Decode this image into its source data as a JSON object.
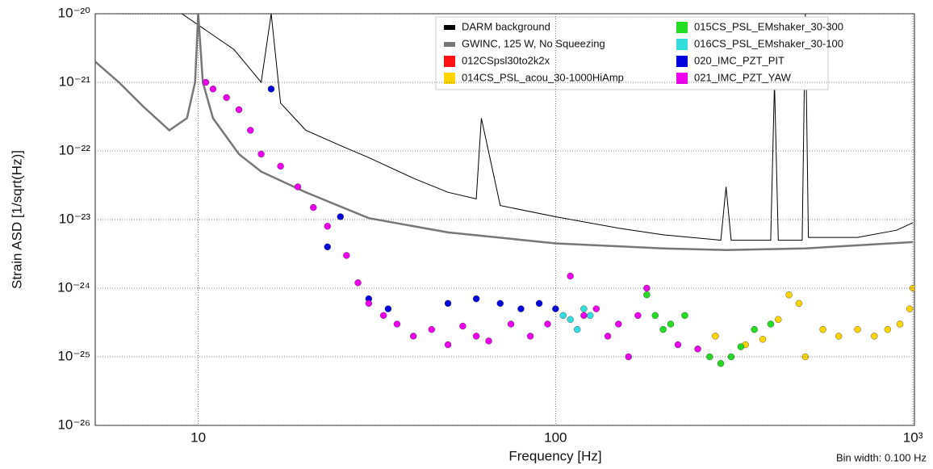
{
  "chart_data": {
    "type": "line",
    "x_label": "Frequency [Hz]",
    "y_label": "Strain ASD [1/sqrt(Hz)]",
    "annotation": "Bin width: 0.100 Hz",
    "xscale": "log",
    "yscale": "log",
    "grid": true,
    "legend": "top-right",
    "xlim": [
      5.15,
      1010
    ],
    "ylim": [
      1e-26,
      1e-20
    ],
    "xticks": [
      10,
      100,
      {
        "value": 1000,
        "label": "10³"
      }
    ],
    "yticks": [
      {
        "value": 1e-26,
        "label": "10⁻²⁶"
      },
      {
        "value": 1e-25,
        "label": "10⁻²⁵"
      },
      {
        "value": 1e-24,
        "label": "10⁻²⁴"
      },
      {
        "value": 1e-23,
        "label": "10⁻²³"
      },
      {
        "value": 1e-22,
        "label": "10⁻²²"
      },
      {
        "value": 1e-21,
        "label": "10⁻²¹"
      },
      {
        "value": 1e-20,
        "label": "10⁻²⁰"
      }
    ],
    "series": [
      {
        "name": "DARM background",
        "color": "#000000",
        "mode": "line",
        "x": [
          6,
          9,
          12.6,
          15,
          16,
          17,
          20,
          25,
          30,
          40,
          50,
          60,
          62,
          70,
          100,
          150,
          200,
          290,
          300,
          310,
          400,
          410,
          420,
          490,
          500,
          510,
          700,
          900,
          1000
        ],
        "values": [
          1e-20,
          1e-20,
          3e-21,
          1e-21,
          1e-20,
          5e-22,
          2e-22,
          1.2e-22,
          8e-23,
          4e-23,
          2.5e-23,
          2e-23,
          3e-22,
          1.6e-23,
          1.1e-23,
          7.5e-24,
          6e-24,
          5e-24,
          3e-23,
          5e-24,
          5e-24,
          1e-21,
          5e-24,
          5e-24,
          1e-20,
          5.5e-24,
          5.5e-24,
          7e-24,
          9e-24
        ]
      },
      {
        "name": "GWINC, 125 W, No Squeezing",
        "color": "#777777",
        "mode": "line",
        "x": [
          5.15,
          6,
          7,
          8.3,
          9.3,
          9.8,
          10,
          10.3,
          11,
          13,
          15,
          20,
          30,
          50,
          100,
          200,
          300,
          500,
          1000
        ],
        "values": [
          2e-21,
          1e-21,
          4.5e-22,
          2e-22,
          3e-22,
          1e-21,
          1e-20,
          1e-21,
          3e-22,
          9e-23,
          5e-23,
          2.5e-23,
          1.05e-23,
          6.5e-24,
          4.5e-24,
          3.8e-24,
          3.6e-24,
          3.8e-24,
          4.7e-24
        ]
      },
      {
        "name": "012CSpsl30to2k2x",
        "color": "#ff1111",
        "mode": "scatter",
        "x": [],
        "values": []
      },
      {
        "name": "014CS_PSL_acou_30-1000HiAmp",
        "color": "#ffd400",
        "mode": "scatter",
        "x": [
          280,
          340,
          380,
          420,
          450,
          480,
          500,
          560,
          620,
          700,
          780,
          850,
          920,
          980,
          1000
        ],
        "values": [
          2e-25,
          1.5e-25,
          1.8e-25,
          3.5e-25,
          8e-25,
          6e-25,
          1e-25,
          2.5e-25,
          2e-25,
          2.5e-25,
          2e-25,
          2.5e-25,
          3e-25,
          5e-25,
          1e-24
        ]
      },
      {
        "name": "015CS_PSL_EMshaker_30-300",
        "color": "#22dd22",
        "mode": "scatter",
        "x": [
          180,
          190,
          200,
          210,
          230,
          270,
          290,
          310,
          330,
          360,
          400
        ],
        "values": [
          8e-25,
          4e-25,
          2.5e-25,
          3e-25,
          4e-25,
          1e-25,
          8e-26,
          1e-25,
          1.4e-25,
          2.5e-25,
          3e-25
        ]
      },
      {
        "name": "016CS_PSL_EMshaker_30-100",
        "color": "#33dddd",
        "mode": "scatter",
        "x": [
          105,
          110,
          115,
          120,
          125
        ],
        "values": [
          4e-25,
          3.5e-25,
          2.5e-25,
          5e-25,
          4e-25
        ]
      },
      {
        "name": "020_IMC_PZT_PIT",
        "color": "#0000dd",
        "mode": "scatter",
        "x": [
          16,
          23,
          25,
          30,
          34,
          50,
          60,
          70,
          80,
          90,
          100
        ],
        "values": [
          8e-22,
          4e-24,
          1.1e-23,
          7e-25,
          5e-25,
          6e-25,
          7e-25,
          6e-25,
          5e-25,
          6e-25,
          5e-25
        ]
      },
      {
        "name": "021_IMC_PZT_YAW",
        "color": "#ee00ee",
        "mode": "scatter",
        "x": [
          10.5,
          11,
          12,
          13,
          14,
          15,
          17,
          19,
          21,
          23,
          26,
          28,
          30,
          33,
          36,
          40,
          45,
          50,
          55,
          60,
          65,
          75,
          85,
          95,
          110,
          120,
          130,
          140,
          150,
          160,
          170,
          180,
          220,
          250
        ],
        "values": [
          1e-21,
          8e-22,
          6e-22,
          4e-22,
          2e-22,
          9e-23,
          6e-23,
          3e-23,
          1.5e-23,
          8e-24,
          3e-24,
          1.2e-24,
          6e-25,
          4e-25,
          3e-25,
          2e-25,
          2.5e-25,
          1.5e-25,
          2.8e-25,
          2e-25,
          1.7e-25,
          3e-25,
          2e-25,
          3e-25,
          1.5e-24,
          4e-25,
          5e-25,
          2e-25,
          3e-25,
          1e-25,
          4e-25,
          1e-24,
          1.5e-25,
          1.3e-25
        ]
      }
    ]
  }
}
